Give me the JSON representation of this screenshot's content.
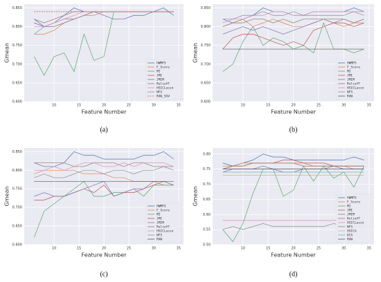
{
  "chart_data": [
    {
      "type": "line",
      "caption": "(a)",
      "x_label": "Feature Number",
      "y_label": "Gmean",
      "x": [
        6,
        8,
        10,
        12,
        14,
        16,
        18,
        20,
        22,
        24,
        26,
        28,
        30,
        32,
        34
      ],
      "xlim": [
        4,
        36
      ],
      "xticks": [
        10,
        15,
        20,
        25,
        30,
        35
      ],
      "ylim": [
        0.6,
        0.86
      ],
      "yticks": [
        {
          "value": 0.6,
          "label": "0.600"
        },
        {
          "value": 0.65,
          "label": "0.650"
        },
        {
          "value": 0.7,
          "label": "0.700"
        },
        {
          "value": 0.75,
          "label": "0.750"
        },
        {
          "value": 0.8,
          "label": "0.800"
        },
        {
          "value": 0.85,
          "label": "0.850"
        }
      ],
      "grid": true,
      "legend": "lower right",
      "series": [
        {
          "name": "HWMPS",
          "color": "#4c72b0",
          "values": [
            0.82,
            0.8,
            0.81,
            0.83,
            0.85,
            0.84,
            0.84,
            0.83,
            0.82,
            0.82,
            0.83,
            0.83,
            0.84,
            0.85,
            0.83
          ]
        },
        {
          "name": "F_Score",
          "color": "#dd8452",
          "values": [
            0.78,
            0.78,
            0.79,
            0.81,
            0.82,
            0.83,
            0.83,
            0.84,
            0.84,
            0.84,
            0.84,
            0.84,
            0.84,
            0.84,
            0.84
          ]
        },
        {
          "name": "MI",
          "color": "#55a868",
          "values": [
            0.72,
            0.67,
            0.72,
            0.73,
            0.68,
            0.78,
            0.71,
            0.72,
            0.84,
            0.84,
            0.84,
            0.84,
            0.84,
            0.84,
            0.84
          ]
        },
        {
          "name": "JMI",
          "color": "#c44e52",
          "values": [
            0.81,
            0.8,
            0.81,
            0.82,
            0.82,
            0.83,
            0.84,
            0.84,
            0.84,
            0.84,
            0.84,
            0.84,
            0.84,
            0.84,
            0.84
          ]
        },
        {
          "name": "JMIM",
          "color": "#8172b3",
          "values": [
            0.81,
            0.8,
            0.8,
            0.81,
            0.82,
            0.83,
            0.84,
            0.84,
            0.84,
            0.84,
            0.84,
            0.84,
            0.84,
            0.84,
            0.84
          ]
        },
        {
          "name": "ReliefF",
          "color": "#937860",
          "values": [
            0.82,
            0.81,
            0.82,
            0.83,
            0.84,
            0.84,
            0.84,
            0.84,
            0.84,
            0.84,
            0.84,
            0.84,
            0.84,
            0.84,
            0.84
          ]
        },
        {
          "name": "HSICLasso",
          "color": "#da8bc3",
          "values": [
            0.8,
            0.8,
            0.81,
            0.82,
            0.83,
            0.84,
            0.84,
            0.84,
            0.84,
            0.84,
            0.84,
            0.84,
            0.84,
            0.84,
            0.84
          ]
        },
        {
          "name": "NFS",
          "color": "#8c8c8c",
          "values": [
            0.78,
            0.8,
            0.8,
            0.81,
            0.82,
            0.83,
            0.84,
            0.84,
            0.84,
            0.84,
            0.84,
            0.84,
            0.84,
            0.84,
            0.84
          ]
        },
        {
          "name": "RAW_SGV",
          "color": "#c44e52",
          "dashed": true,
          "values": [
            0.84,
            0.84,
            0.84,
            0.84,
            0.84,
            0.84,
            0.84,
            0.84,
            0.84,
            0.84,
            0.84,
            0.84,
            0.84,
            0.84,
            0.84
          ]
        }
      ]
    },
    {
      "type": "line",
      "caption": "(b)",
      "x_label": "Feature Number",
      "y_label": "Gmean",
      "x": [
        6,
        8,
        10,
        12,
        14,
        16,
        18,
        20,
        22,
        24,
        26,
        28,
        30,
        32,
        34
      ],
      "xlim": [
        4,
        36
      ],
      "xticks": [
        10,
        15,
        20,
        25,
        30,
        35
      ],
      "ylim": [
        0.6,
        0.86
      ],
      "yticks": [
        {
          "value": 0.6,
          "label": "0.600"
        },
        {
          "value": 0.65,
          "label": "0.650"
        },
        {
          "value": 0.7,
          "label": "0.700"
        },
        {
          "value": 0.75,
          "label": "0.750"
        },
        {
          "value": 0.8,
          "label": "0.800"
        },
        {
          "value": 0.85,
          "label": "0.850"
        }
      ],
      "grid": true,
      "legend": "lower right",
      "series": [
        {
          "name": "HWMPS",
          "color": "#4c72b0",
          "values": [
            0.82,
            0.81,
            0.82,
            0.83,
            0.85,
            0.84,
            0.84,
            0.83,
            0.83,
            0.84,
            0.84,
            0.84,
            0.84,
            0.85,
            0.84
          ]
        },
        {
          "name": "F_Score",
          "color": "#dd8452",
          "values": [
            0.8,
            0.81,
            0.82,
            0.8,
            0.81,
            0.82,
            0.81,
            0.8,
            0.8,
            0.81,
            0.82,
            0.81,
            0.8,
            0.81,
            0.81
          ]
        },
        {
          "name": "MI",
          "color": "#55a868",
          "values": [
            0.68,
            0.7,
            0.76,
            0.8,
            0.75,
            0.77,
            0.76,
            0.74,
            0.75,
            0.73,
            0.81,
            0.74,
            0.74,
            0.73,
            0.74
          ]
        },
        {
          "name": "JMI",
          "color": "#c44e52",
          "values": [
            0.74,
            0.77,
            0.78,
            0.78,
            0.77,
            0.76,
            0.75,
            0.76,
            0.75,
            0.79,
            0.8,
            0.81,
            0.81,
            0.8,
            0.81
          ]
        },
        {
          "name": "JMIM",
          "color": "#8172b3",
          "values": [
            0.78,
            0.79,
            0.8,
            0.79,
            0.8,
            0.79,
            0.78,
            0.79,
            0.8,
            0.81,
            0.82,
            0.81,
            0.82,
            0.81,
            0.82
          ]
        },
        {
          "name": "ReliefF",
          "color": "#937860",
          "values": [
            0.8,
            0.81,
            0.81,
            0.82,
            0.82,
            0.81,
            0.82,
            0.81,
            0.82,
            0.82,
            0.82,
            0.82,
            0.82,
            0.81,
            0.82
          ]
        },
        {
          "name": "HSICLasso",
          "color": "#da8bc3",
          "values": [
            0.81,
            0.82,
            0.82,
            0.83,
            0.83,
            0.84,
            0.84,
            0.83,
            0.83,
            0.84,
            0.84,
            0.84,
            0.84,
            0.84,
            0.84
          ]
        },
        {
          "name": "NFS",
          "color": "#8c8c8c",
          "values": [
            0.82,
            0.82,
            0.83,
            0.83,
            0.84,
            0.83,
            0.83,
            0.84,
            0.83,
            0.83,
            0.83,
            0.83,
            0.83,
            0.84,
            0.83
          ]
        },
        {
          "name": "RAW",
          "color": "#555555",
          "values": [
            0.74,
            0.74,
            0.74,
            0.74,
            0.74,
            0.74,
            0.74,
            0.74,
            0.74,
            0.74,
            0.74,
            0.74,
            0.74,
            0.74,
            0.74
          ]
        }
      ]
    },
    {
      "type": "line",
      "caption": "(c)",
      "x_label": "Feature Number",
      "y_label": "Gmean",
      "x": [
        6,
        8,
        10,
        12,
        14,
        16,
        18,
        20,
        22,
        24,
        26,
        28,
        30,
        32,
        34
      ],
      "xlim": [
        4,
        36
      ],
      "xticks": [
        10,
        15,
        20,
        25,
        30,
        35
      ],
      "ylim": [
        0.6,
        0.86
      ],
      "yticks": [
        {
          "value": 0.6,
          "label": "0.600"
        },
        {
          "value": 0.65,
          "label": "0.650"
        },
        {
          "value": 0.7,
          "label": "0.700"
        },
        {
          "value": 0.75,
          "label": "0.750"
        },
        {
          "value": 0.8,
          "label": "0.800"
        },
        {
          "value": 0.85,
          "label": "0.850"
        }
      ],
      "grid": true,
      "legend": "lower right",
      "series": [
        {
          "name": "HWMPS",
          "color": "#4c72b0",
          "values": [
            0.82,
            0.81,
            0.81,
            0.82,
            0.85,
            0.84,
            0.84,
            0.83,
            0.83,
            0.83,
            0.83,
            0.84,
            0.84,
            0.85,
            0.83
          ]
        },
        {
          "name": "F_Score",
          "color": "#dd8452",
          "values": [
            0.79,
            0.8,
            0.8,
            0.8,
            0.8,
            0.79,
            0.79,
            0.79,
            0.78,
            0.78,
            0.77,
            0.77,
            0.77,
            0.76,
            0.76
          ]
        },
        {
          "name": "MI",
          "color": "#55a868",
          "values": [
            0.62,
            0.69,
            0.71,
            0.73,
            0.75,
            0.77,
            0.73,
            0.73,
            0.74,
            0.74,
            0.75,
            0.73,
            0.76,
            0.76,
            0.76
          ]
        },
        {
          "name": "JMI",
          "color": "#c44e52",
          "values": [
            0.72,
            0.72,
            0.73,
            0.73,
            0.74,
            0.75,
            0.74,
            0.76,
            0.73,
            0.74,
            0.74,
            0.75,
            0.76,
            0.77,
            0.76
          ]
        },
        {
          "name": "JMIM",
          "color": "#8172b3",
          "values": [
            0.73,
            0.74,
            0.73,
            0.73,
            0.74,
            0.75,
            0.76,
            0.77,
            0.73,
            0.74,
            0.75,
            0.75,
            0.77,
            0.77,
            0.76
          ]
        },
        {
          "name": "ReliefF",
          "color": "#937860",
          "values": [
            0.82,
            0.82,
            0.82,
            0.82,
            0.81,
            0.81,
            0.82,
            0.82,
            0.82,
            0.81,
            0.82,
            0.82,
            0.81,
            0.81,
            0.81
          ]
        },
        {
          "name": "HSICLasso",
          "color": "#da8bc3",
          "values": [
            0.8,
            0.8,
            0.81,
            0.8,
            0.81,
            0.82,
            0.82,
            0.81,
            0.81,
            0.82,
            0.81,
            0.82,
            0.82,
            0.82,
            0.81
          ]
        },
        {
          "name": "NFS",
          "color": "#8c8c8c",
          "values": [
            0.78,
            0.79,
            0.78,
            0.78,
            0.79,
            0.8,
            0.8,
            0.79,
            0.8,
            0.8,
            0.79,
            0.8,
            0.8,
            0.81,
            0.8
          ]
        },
        {
          "name": "RAW",
          "color": "#555555",
          "values": [
            0.77,
            0.77,
            0.77,
            0.77,
            0.77,
            0.77,
            0.77,
            0.77,
            0.77,
            0.77,
            0.77,
            0.77,
            0.77,
            0.77,
            0.77
          ]
        }
      ]
    },
    {
      "type": "line",
      "caption": "(d)",
      "x_label": "Feature Number",
      "y_label": "Gmean",
      "x": [
        6,
        8,
        10,
        12,
        14,
        16,
        18,
        20,
        22,
        24,
        26,
        28,
        30,
        32,
        34
      ],
      "xlim": [
        4,
        36
      ],
      "xticks": [
        10,
        15,
        20,
        25,
        30,
        35
      ],
      "ylim": [
        0.5,
        0.82
      ],
      "yticks": [
        {
          "value": 0.5,
          "label": "0.50"
        },
        {
          "value": 0.55,
          "label": "0.55"
        },
        {
          "value": 0.6,
          "label": "0.60"
        },
        {
          "value": 0.65,
          "label": "0.65"
        },
        {
          "value": 0.7,
          "label": "0.70"
        },
        {
          "value": 0.75,
          "label": "0.75"
        },
        {
          "value": 0.8,
          "label": "0.80"
        }
      ],
      "grid": true,
      "legend": "lower right",
      "series": [
        {
          "name": "HWMPS",
          "color": "#4c72b0",
          "values": [
            0.77,
            0.76,
            0.77,
            0.78,
            0.8,
            0.79,
            0.79,
            0.78,
            0.78,
            0.78,
            0.78,
            0.78,
            0.78,
            0.79,
            0.78
          ]
        },
        {
          "name": "F_Score",
          "color": "#dd8452",
          "values": [
            0.76,
            0.76,
            0.77,
            0.77,
            0.77,
            0.77,
            0.77,
            0.77,
            0.77,
            0.76,
            0.76,
            0.76,
            0.76,
            0.75,
            0.75
          ]
        },
        {
          "name": "MI",
          "color": "#55a868",
          "values": [
            0.55,
            0.51,
            0.57,
            0.67,
            0.75,
            0.75,
            0.66,
            0.68,
            0.76,
            0.71,
            0.76,
            0.72,
            0.74,
            0.69,
            0.76
          ]
        },
        {
          "name": "JMI",
          "color": "#c44e52",
          "values": [
            0.75,
            0.76,
            0.76,
            0.77,
            0.77,
            0.77,
            0.78,
            0.78,
            0.77,
            0.77,
            0.77,
            0.76,
            0.76,
            0.76,
            0.76
          ]
        },
        {
          "name": "JMIM",
          "color": "#8172b3",
          "values": [
            0.74,
            0.75,
            0.75,
            0.75,
            0.76,
            0.75,
            0.74,
            0.74,
            0.75,
            0.75,
            0.75,
            0.76,
            0.75,
            0.75,
            0.75
          ]
        },
        {
          "name": "ReliefF",
          "color": "#937860",
          "values": [
            0.75,
            0.76,
            0.76,
            0.77,
            0.77,
            0.77,
            0.77,
            0.77,
            0.76,
            0.76,
            0.76,
            0.76,
            0.76,
            0.76,
            0.76
          ]
        },
        {
          "name": "HSICLasso",
          "color": "#da8bc3",
          "values": [
            0.58,
            0.58,
            0.58,
            0.58,
            0.58,
            0.58,
            0.58,
            0.58,
            0.58,
            0.58,
            0.58,
            0.58,
            0.58,
            0.58,
            0.58
          ]
        },
        {
          "name": "NFS",
          "color": "#8c8c8c",
          "values": [
            0.55,
            0.56,
            0.55,
            0.56,
            0.57,
            0.56,
            0.56,
            0.56,
            0.56,
            0.56,
            0.56,
            0.57,
            0.56,
            0.56,
            0.56
          ]
        },
        {
          "name": "HSICA",
          "color": "#ccb974",
          "values": [
            0.73,
            0.73,
            0.73,
            0.73,
            0.73,
            0.73,
            0.73,
            0.73,
            0.73,
            0.73,
            0.73,
            0.73,
            0.73,
            0.73,
            0.73
          ]
        },
        {
          "name": "DCA",
          "color": "#64b5cd",
          "values": [
            0.74,
            0.74,
            0.74,
            0.74,
            0.74,
            0.74,
            0.74,
            0.74,
            0.74,
            0.74,
            0.74,
            0.74,
            0.74,
            0.74,
            0.74
          ]
        },
        {
          "name": "RAW",
          "color": "#555555",
          "values": [
            0.75,
            0.75,
            0.75,
            0.75,
            0.75,
            0.75,
            0.75,
            0.75,
            0.75,
            0.75,
            0.75,
            0.75,
            0.75,
            0.75,
            0.75
          ]
        }
      ]
    }
  ]
}
